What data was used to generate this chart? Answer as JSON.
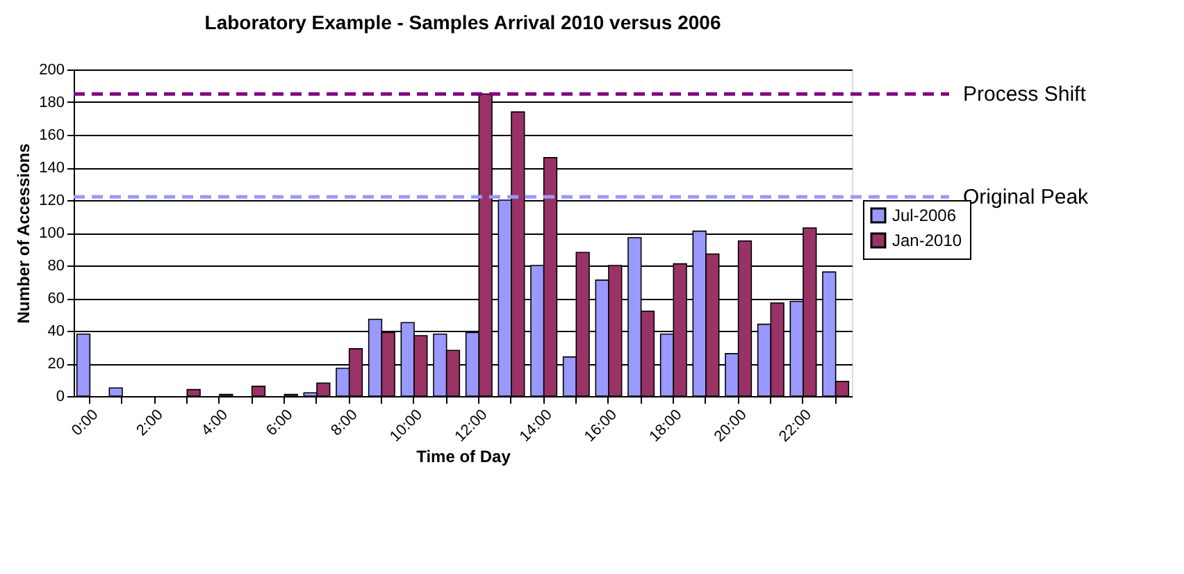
{
  "chart_data": {
    "type": "bar",
    "title": "Laboratory Example - Samples Arrival 2010 versus 2006",
    "xlabel": "Time of Day",
    "ylabel": "Number of Accessions",
    "categories": [
      "0:00",
      null,
      "2:00",
      null,
      "4:00",
      null,
      "6:00",
      null,
      "8:00",
      null,
      "10:00",
      null,
      "12:00",
      null,
      "14:00",
      null,
      "16:00",
      null,
      "18:00",
      null,
      "20:00",
      null,
      "22:00",
      null
    ],
    "series": [
      {
        "name": "Jul-2006",
        "color": "#9999ff",
        "values": [
          38,
          5,
          0,
          0,
          0,
          0,
          0,
          2,
          17,
          47,
          45,
          38,
          39,
          120,
          80,
          24,
          71,
          97,
          38,
          101,
          26,
          44,
          58,
          76
        ]
      },
      {
        "name": "Jan-2010",
        "color": "#993366",
        "values": [
          0,
          0,
          0,
          4,
          1,
          6,
          1,
          8,
          29,
          39,
          37,
          28,
          185,
          174,
          146,
          88,
          80,
          52,
          81,
          87,
          95,
          57,
          103,
          9
        ]
      }
    ],
    "ylim": [
      0,
      200
    ],
    "yticks": [
      0,
      20,
      40,
      60,
      80,
      100,
      120,
      140,
      160,
      180,
      200
    ],
    "grid": "y",
    "legend": "right",
    "ref_lines": [
      {
        "axis": "y",
        "value": 185,
        "label": "Process Shift",
        "color": "#800080",
        "line_style": "dashed"
      },
      {
        "axis": "y",
        "value": 122,
        "label": "Original Peak",
        "color": "#9999ff",
        "line_style": "dashed"
      }
    ]
  }
}
